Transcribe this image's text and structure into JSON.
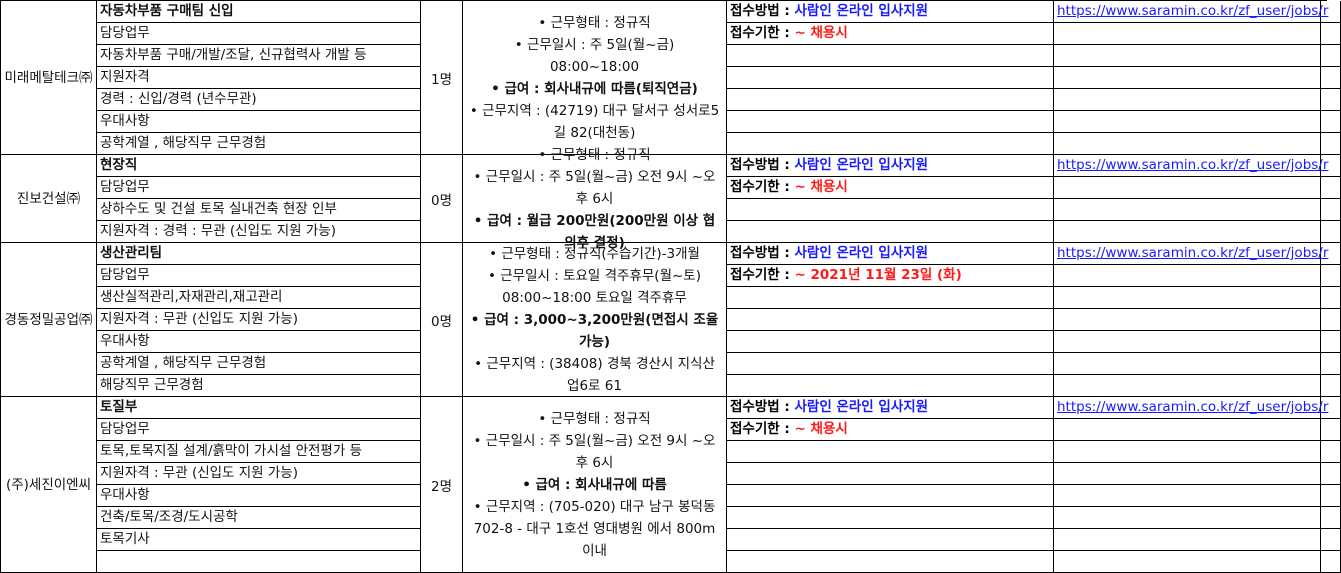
{
  "colors": {
    "apply_method": "#1a1aff",
    "deadline": "#ff1a1a",
    "grid": "#000000"
  },
  "labels": {
    "method": "접수방법 : ",
    "deadline": "접수기한 : "
  },
  "blocks": [
    {
      "company": "미래메탈테크㈜",
      "count": "1명",
      "rows": 7,
      "details": [
        {
          "text": "자동차부품 구매팀 신입",
          "bold": true
        },
        {
          "text": "담당업무"
        },
        {
          "text": "자동차부품 구매/개발/조달, 신규협력사 개발 등"
        },
        {
          "text": "지원자격"
        },
        {
          "text": "경력 : 신입/경력 (년수무관)"
        },
        {
          "text": "우대사항"
        },
        {
          "text": "공학계열 , 해당직무 근무경험"
        }
      ],
      "conditions": [
        {
          "text": "• 근무형태 : 정규직"
        },
        {
          "text": "• 근무일시 : 주 5일(월~금) 08:00~18:00"
        },
        {
          "text": "• 급여 : 회사내규에 따름(퇴직연금)",
          "bold": true
        },
        {
          "text": "• 근무지역 : (42719) 대구 달서구 성서로5길 82(대천동)"
        }
      ],
      "method": "사람인 온라인 입사지원",
      "deadline": "~ 채용시",
      "link": "https://www.saramin.co.kr/zf_user/jobs/r"
    },
    {
      "company": "진보건설㈜",
      "count": "0명",
      "rows": 4,
      "details": [
        {
          "text": "현장직",
          "bold": true
        },
        {
          "text": "담당업무"
        },
        {
          "text": "상하수도 및 건설 토목 실내건축 현장 인부"
        },
        {
          "text": "지원자격 : 경력 : 무관 (신입도 지원 가능)"
        }
      ],
      "conditions": [
        {
          "text": "• 근무형태 : 정규직"
        },
        {
          "text": "• 근무일시 : 주 5일(월~금) 오전 9시 ~오후 6시"
        },
        {
          "text": "• 급여 : 월급 200만원(200만원 이상 협의후 결정)",
          "bold": true
        }
      ],
      "method": "사람인 온라인 입사지원",
      "deadline": "~ 채용시",
      "link": "https://www.saramin.co.kr/zf_user/jobs/r"
    },
    {
      "company": "경동정밀공업㈜",
      "count": "0명",
      "rows": 7,
      "details": [
        {
          "text": "생산관리팀",
          "bold": true
        },
        {
          "text": "담당업무"
        },
        {
          "text": "생산실적관리,자재관리,재고관리"
        },
        {
          "text": "지원자격 : 무관 (신입도 지원 가능)"
        },
        {
          "text": "우대사항"
        },
        {
          "text": "공학계열 , 해당직무 근무경험"
        },
        {
          "text": "해당직무 근무경험"
        }
      ],
      "conditions": [
        {
          "text": "• 근무형태 : 정규직(수습기간)-3개월"
        },
        {
          "text": "• 근무일시 : 토요일 격주휴무(월~토) 08:00~18:00 토요일 격주휴무"
        },
        {
          "text": "• 급여 : 3,000~3,200만원(면접시 조율가능)",
          "bold": true
        },
        {
          "text": "• 근무지역 : (38408) 경북 경산시 지식산업6로 61"
        }
      ],
      "method": "사람인 온라인 입사지원",
      "deadline": "~ 2021년 11월 23일 (화)",
      "link": "https://www.saramin.co.kr/zf_user/jobs/r"
    },
    {
      "company": "(주)세진이엔씨",
      "count": "2명",
      "rows": 8,
      "details": [
        {
          "text": "토질부",
          "bold": true
        },
        {
          "text": "담당업무"
        },
        {
          "text": "토목,토목지질 설계/흙막이 가시설 안전평가 등"
        },
        {
          "text": "지원자격 : 무관 (신입도 지원 가능)"
        },
        {
          "text": "우대사항"
        },
        {
          "text": "건축/토목/조경/도시공학"
        },
        {
          "text": "토목기사"
        },
        {
          "text": ""
        }
      ],
      "conditions": [
        {
          "text": "• 근무형태 : 정규직"
        },
        {
          "text": "• 근무일시 : 주 5일(월~금) 오전 9시 ~오후 6시"
        },
        {
          "text": "• 급여 : 회사내규에 따름",
          "bold": true
        },
        {
          "text": "• 근무지역 : (705-020) 대구 남구 봉덕동 702-8 - 대구 1호선 영대병원 에서 800m 이내"
        }
      ],
      "method": "사람인 온라인 입사지원",
      "deadline": "~ 채용시",
      "link": "https://www.saramin.co.kr/zf_user/jobs/r"
    }
  ]
}
